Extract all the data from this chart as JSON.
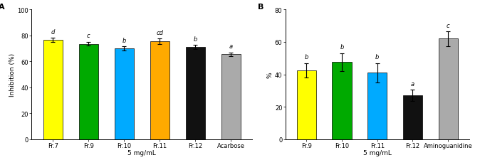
{
  "chart_A": {
    "categories": [
      "Fr.7",
      "Fr.9",
      "Fr.10",
      "Fr.11",
      "Fr.12",
      "Acarbose"
    ],
    "values": [
      76.5,
      73.5,
      70.0,
      75.5,
      71.0,
      65.5
    ],
    "errors": [
      1.5,
      1.5,
      1.5,
      2.0,
      1.5,
      1.5
    ],
    "colors": [
      "#FFFF00",
      "#00AA00",
      "#00AAFF",
      "#FFAA00",
      "#111111",
      "#AAAAAA"
    ],
    "labels": [
      "d",
      "c",
      "b",
      "cd",
      "b",
      "a"
    ],
    "ylabel": "Inhibition (%)",
    "xlabel": "5 mg/mL",
    "ylim": [
      0,
      100
    ],
    "yticks": [
      0,
      20,
      40,
      60,
      80,
      100
    ],
    "panel_label": "A"
  },
  "chart_B": {
    "categories": [
      "Fr.9",
      "Fr.10",
      "Fr.11",
      "Fr.12",
      "Aminoguanidine"
    ],
    "values": [
      42.5,
      47.5,
      41.0,
      27.0,
      62.0
    ],
    "errors": [
      4.5,
      5.5,
      6.0,
      3.5,
      4.5
    ],
    "colors": [
      "#FFFF00",
      "#00AA00",
      "#00AAFF",
      "#111111",
      "#AAAAAA"
    ],
    "labels": [
      "b",
      "b",
      "b",
      "a",
      "c"
    ],
    "ylabel": "%",
    "xlabel": "5 mg/mL",
    "ylim": [
      0,
      80
    ],
    "yticks": [
      0,
      20,
      40,
      60,
      80
    ],
    "panel_label": "B"
  },
  "bar_width": 0.55,
  "tick_fontsize": 6,
  "axis_label_fontsize": 6.5,
  "panel_label_fontsize": 8,
  "sig_label_fontsize": 6
}
